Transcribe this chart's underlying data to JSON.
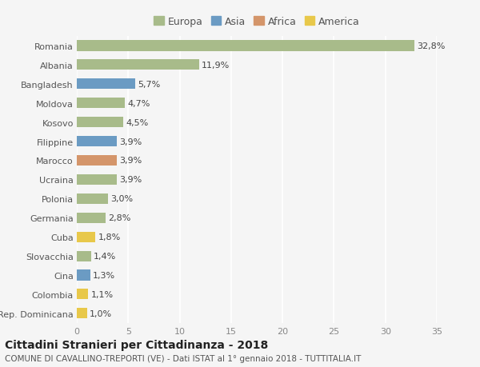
{
  "countries": [
    "Romania",
    "Albania",
    "Bangladesh",
    "Moldova",
    "Kosovo",
    "Filippine",
    "Marocco",
    "Ucraina",
    "Polonia",
    "Germania",
    "Cuba",
    "Slovacchia",
    "Cina",
    "Colombia",
    "Rep. Dominicana"
  ],
  "values": [
    32.8,
    11.9,
    5.7,
    4.7,
    4.5,
    3.9,
    3.9,
    3.9,
    3.0,
    2.8,
    1.8,
    1.4,
    1.3,
    1.1,
    1.0
  ],
  "labels": [
    "32,8%",
    "11,9%",
    "5,7%",
    "4,7%",
    "4,5%",
    "3,9%",
    "3,9%",
    "3,9%",
    "3,0%",
    "2,8%",
    "1,8%",
    "1,4%",
    "1,3%",
    "1,1%",
    "1,0%"
  ],
  "continents": [
    "Europa",
    "Europa",
    "Asia",
    "Europa",
    "Europa",
    "Asia",
    "Africa",
    "Europa",
    "Europa",
    "Europa",
    "America",
    "Europa",
    "Asia",
    "America",
    "America"
  ],
  "colors": {
    "Europa": "#a8bb8a",
    "Asia": "#6b9bc3",
    "Africa": "#d4956a",
    "America": "#e8c84a"
  },
  "legend_order": [
    "Europa",
    "Asia",
    "Africa",
    "America"
  ],
  "title_main": "Cittadini Stranieri per Cittadinanza - 2018",
  "title_sub": "COMUNE DI CAVALLINO-TREPORTI (VE) - Dati ISTAT al 1° gennaio 2018 - TUTTITALIA.IT",
  "xlim": [
    0,
    35
  ],
  "xticks": [
    0,
    5,
    10,
    15,
    20,
    25,
    30,
    35
  ],
  "background_color": "#f5f5f5",
  "bar_height": 0.55,
  "grid_color": "#ffffff",
  "label_fontsize": 8,
  "tick_fontsize": 8,
  "title_fontsize": 10,
  "subtitle_fontsize": 7.5
}
